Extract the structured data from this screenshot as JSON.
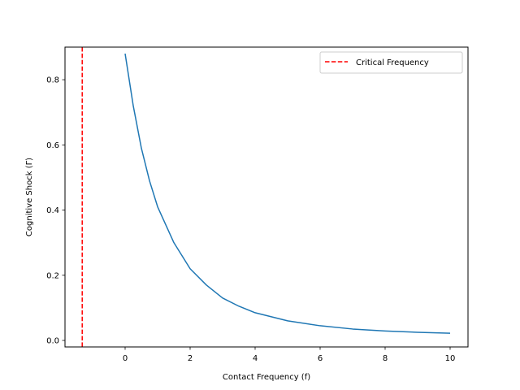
{
  "chart_data": {
    "type": "line",
    "title": "",
    "xlabel": "Contact Frequency (f)",
    "ylabel": "Cognitive Shock (Γ)",
    "xlim": [
      -1.85,
      10.55
    ],
    "ylim": [
      -0.02,
      0.9
    ],
    "xticks": [
      0,
      2,
      4,
      6,
      8,
      10
    ],
    "yticks": [
      0.0,
      0.2,
      0.4,
      0.6,
      0.8
    ],
    "xtick_labels": [
      "0",
      "2",
      "4",
      "6",
      "8",
      "10"
    ],
    "ytick_labels": [
      "0.0",
      "0.2",
      "0.4",
      "0.6",
      "0.8"
    ],
    "grid": false,
    "legend": {
      "position": "upper right"
    },
    "series": [
      {
        "color": "#1f77b4",
        "style": "solid",
        "x": [
          0,
          0.25,
          0.5,
          0.75,
          1,
          1.5,
          2,
          2.5,
          3,
          3.5,
          4,
          5,
          6,
          7,
          8,
          9,
          10
        ],
        "y": [
          0.88,
          0.72,
          0.59,
          0.49,
          0.41,
          0.3,
          0.22,
          0.17,
          0.13,
          0.105,
          0.085,
          0.06,
          0.045,
          0.035,
          0.029,
          0.025,
          0.022
        ]
      }
    ],
    "vlines": [
      {
        "name": "Critical Frequency",
        "x": -1.32,
        "color": "#ff0000",
        "style": "dashed"
      }
    ]
  }
}
